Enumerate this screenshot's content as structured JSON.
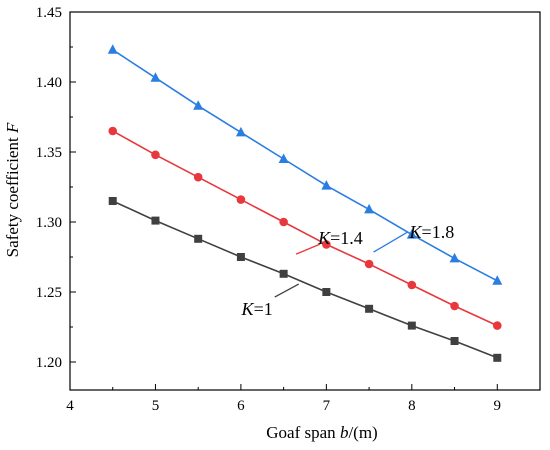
{
  "chart_data": {
    "type": "line",
    "xlabel": "Goaf span",
    "xlabel_var": "b",
    "xlabel_unit": "/(m)",
    "ylabel": "Safety coefficient",
    "ylabel_var": "F",
    "xlim": [
      4,
      9.5
    ],
    "ylim": [
      1.18,
      1.45
    ],
    "xticks": [
      "4",
      "5",
      "6",
      "7",
      "8",
      "9"
    ],
    "yticks": [
      "1.20",
      "1.25",
      "1.30",
      "1.35",
      "1.40",
      "1.45"
    ],
    "grid": false,
    "x": [
      4.5,
      5.0,
      5.5,
      6.0,
      6.5,
      7.0,
      7.5,
      8.0,
      8.5,
      9.0
    ],
    "series": [
      {
        "label_var": "K",
        "label_val": "=1",
        "color": "#404040",
        "marker": "square",
        "values": [
          1.315,
          1.301,
          1.288,
          1.275,
          1.263,
          1.25,
          1.238,
          1.226,
          1.215,
          1.203
        ]
      },
      {
        "label_var": "K",
        "label_val": "=1.4",
        "color": "#e8383d",
        "marker": "circle",
        "values": [
          1.365,
          1.348,
          1.332,
          1.316,
          1.3,
          1.284,
          1.27,
          1.255,
          1.24,
          1.226
        ]
      },
      {
        "label_var": "K",
        "label_val": "=1.8",
        "color": "#2a7de1",
        "marker": "triangle",
        "values": [
          1.423,
          1.403,
          1.383,
          1.364,
          1.345,
          1.326,
          1.309,
          1.291,
          1.274,
          1.258
        ]
      }
    ],
    "annotations": [
      {
        "text_var": "K",
        "text_val": "=1",
        "series": 0,
        "at_x": 6.7,
        "at_y": 1.272
      },
      {
        "text_var": "K",
        "text_val": "=1.4",
        "series": 1,
        "at_x": 6.95,
        "at_y": 1.332
      },
      {
        "text_var": "K",
        "text_val": "=1.8",
        "series": 2,
        "at_x": 7.95,
        "at_y": 1.349
      }
    ]
  }
}
